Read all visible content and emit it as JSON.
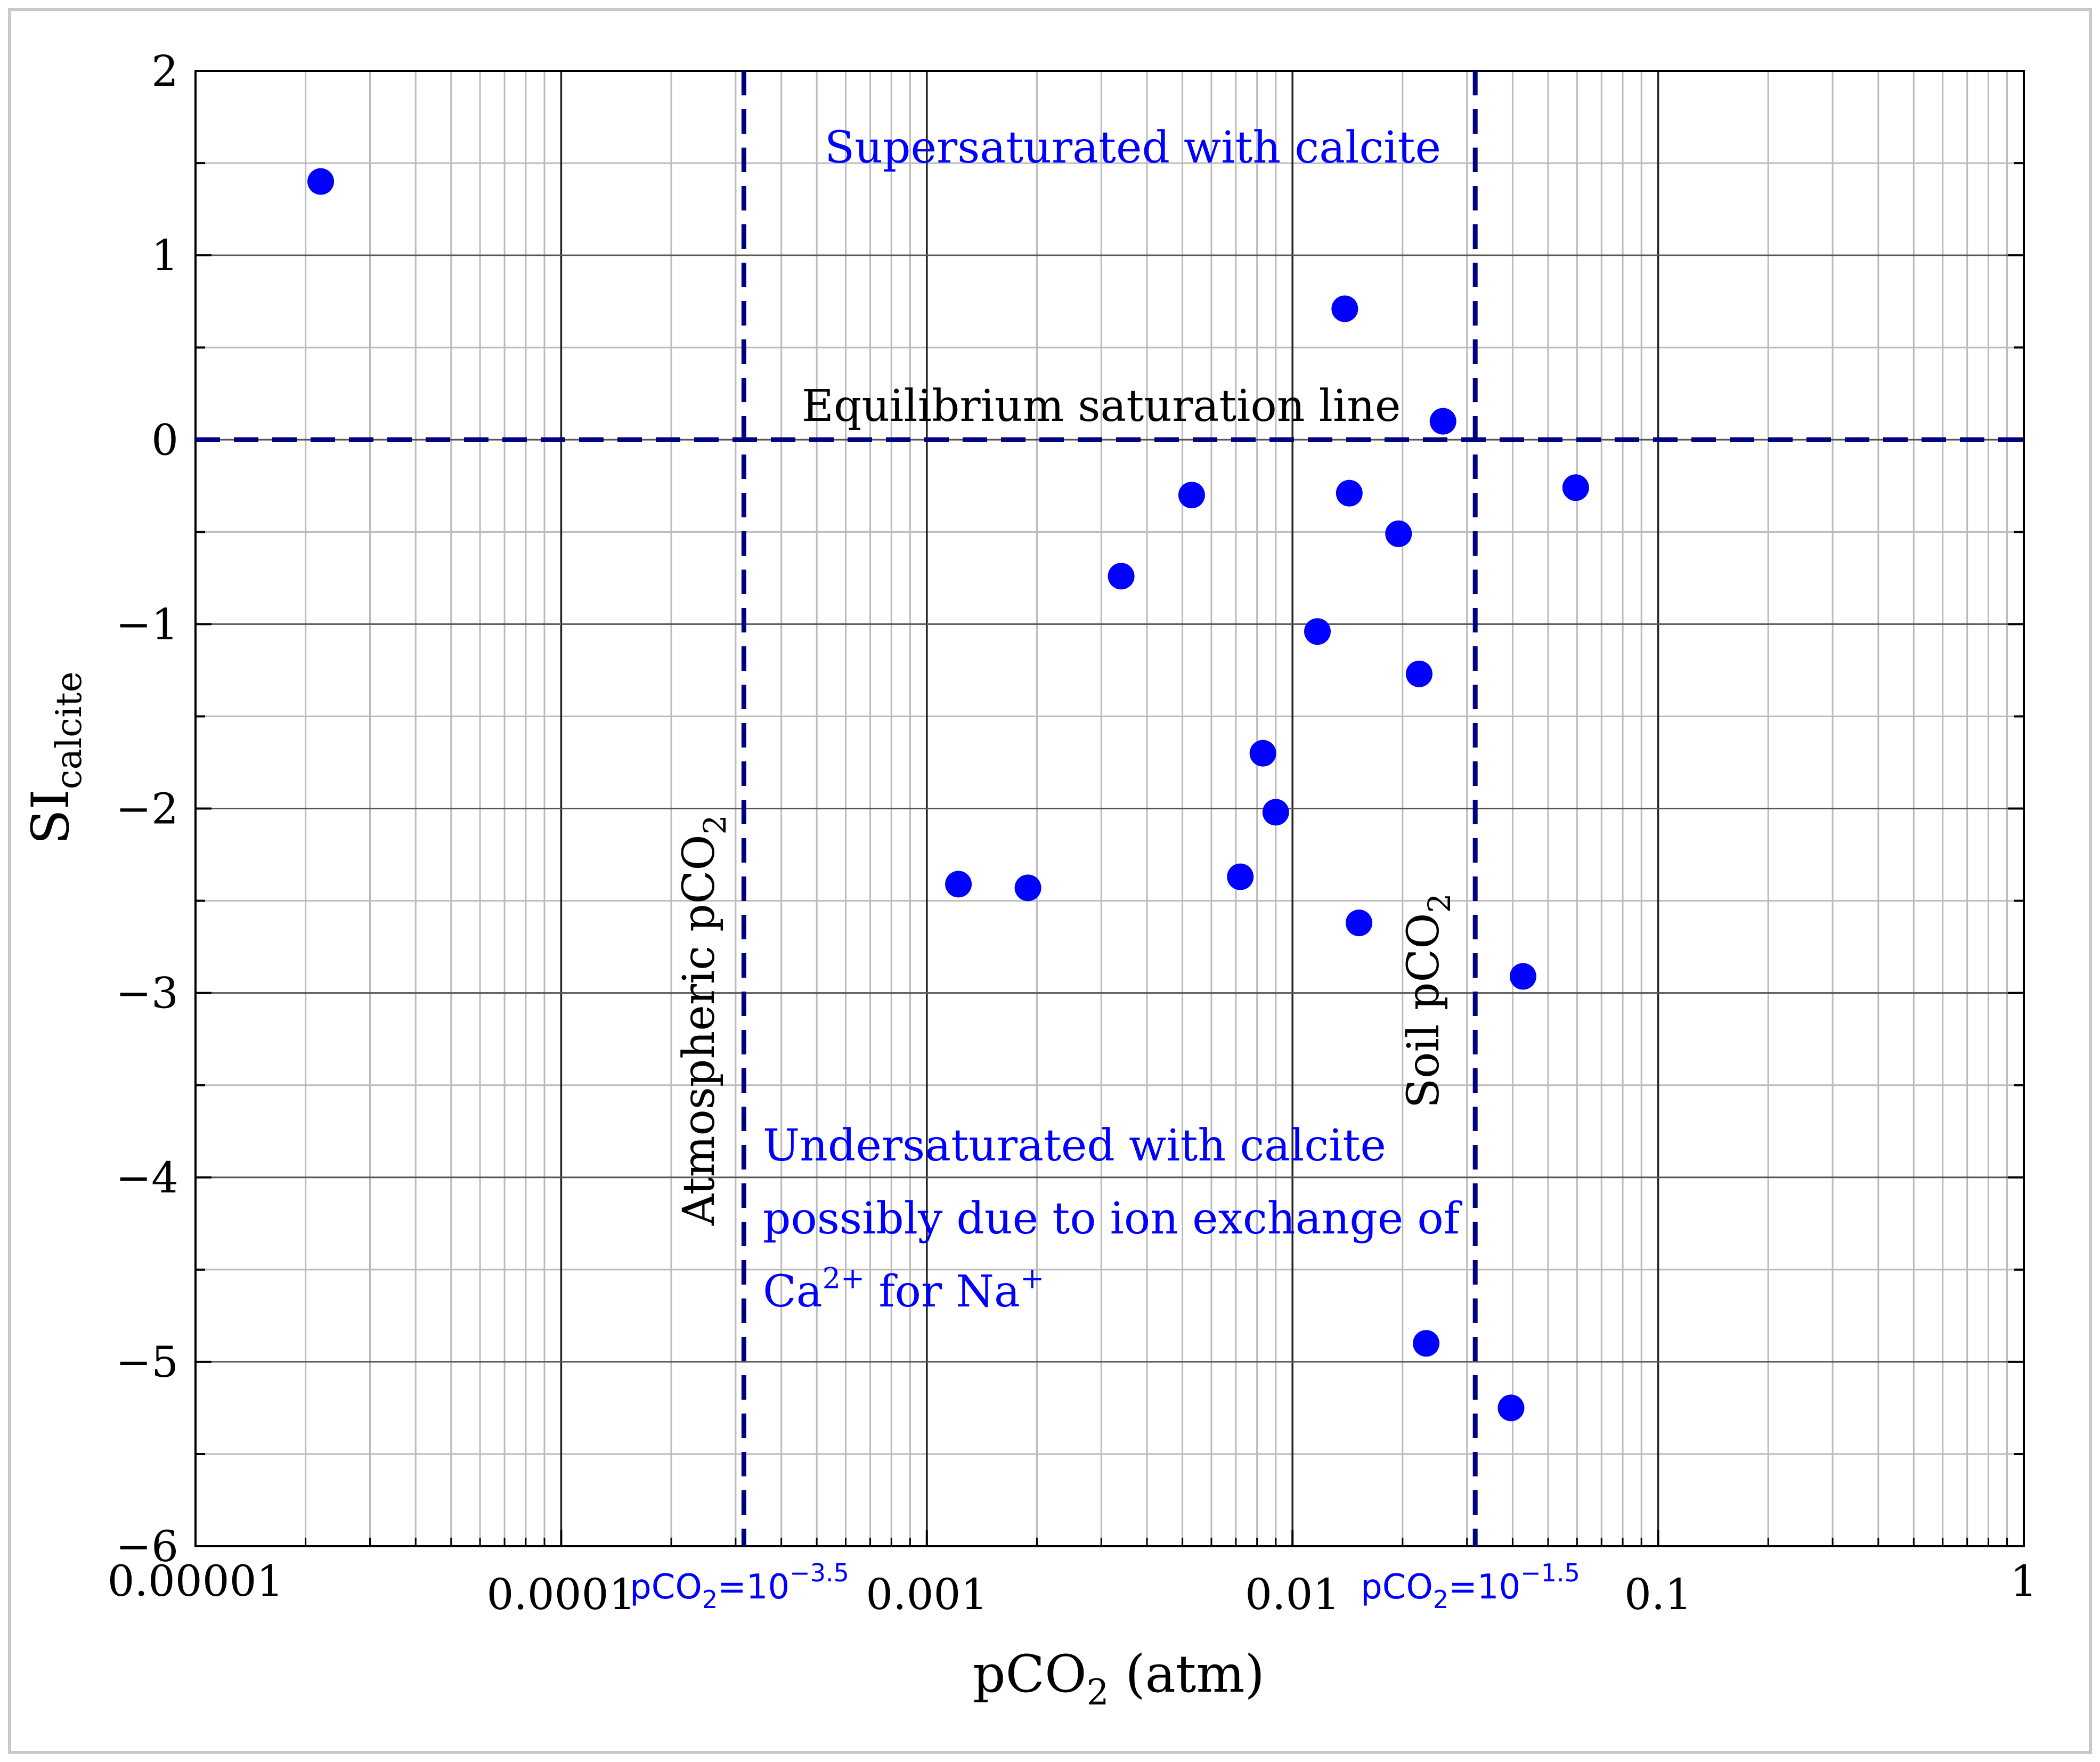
{
  "colors": {
    "marker": "#0000ff",
    "reference_line": "#000080",
    "blue_text": "#0000ff",
    "grid_major": "#222222",
    "grid_minor": "#bbbbbb",
    "frame": "#c8c8c8"
  },
  "chart_data": {
    "type": "scatter",
    "x_scale": "log",
    "xlim": [
      1e-05,
      1
    ],
    "ylim": [
      -6,
      2
    ],
    "x_tick_labels": [
      "0.00001",
      "0.0001",
      "0.001",
      "0.01",
      "0.1",
      "1"
    ],
    "x_ticks": [
      1e-05,
      0.0001,
      0.001,
      0.01,
      0.1,
      1
    ],
    "y_ticks": [
      2,
      1,
      0,
      -1,
      -2,
      -3,
      -4,
      -5,
      -6
    ],
    "y_tick_labels": [
      "2",
      "1",
      "0",
      "−1",
      "−2",
      "−3",
      "−4",
      "−5",
      "−6"
    ],
    "grid": true,
    "xlabel": {
      "base": "pCO",
      "sub": "2",
      "rest": " (atm)"
    },
    "ylabel": {
      "base": "SI",
      "sub": "calcite"
    },
    "points": [
      {
        "x": 2.2e-05,
        "y": 1.4
      },
      {
        "x": 0.0139,
        "y": 0.71
      },
      {
        "x": 0.0258,
        "y": 0.1
      },
      {
        "x": 0.0053,
        "y": -0.3
      },
      {
        "x": 0.0143,
        "y": -0.29
      },
      {
        "x": 0.0595,
        "y": -0.26
      },
      {
        "x": 0.0195,
        "y": -0.51
      },
      {
        "x": 0.0034,
        "y": -0.74
      },
      {
        "x": 0.0117,
        "y": -1.04
      },
      {
        "x": 0.0222,
        "y": -1.27
      },
      {
        "x": 0.0083,
        "y": -1.7
      },
      {
        "x": 0.009,
        "y": -2.02
      },
      {
        "x": 0.00122,
        "y": -2.41
      },
      {
        "x": 0.00189,
        "y": -2.43
      },
      {
        "x": 0.0072,
        "y": -2.37
      },
      {
        "x": 0.0152,
        "y": -2.62
      },
      {
        "x": 0.0427,
        "y": -2.91
      },
      {
        "x": 0.0232,
        "y": -4.9
      },
      {
        "x": 0.0396,
        "y": -5.25
      }
    ],
    "reference_lines": [
      {
        "orientation": "horizontal",
        "y": 0,
        "label": "Equilibrium saturation line"
      },
      {
        "orientation": "vertical",
        "x": 0.000316,
        "label": {
          "text": "Atmospheric pCO",
          "sub": "2"
        },
        "tick_label": {
          "base": "pCO",
          "sub": "2",
          "eq": "=10",
          "sup": "−3.5"
        }
      },
      {
        "orientation": "vertical",
        "x": 0.0316,
        "label": {
          "text": "Soil pCO",
          "sub": "2"
        },
        "tick_label": {
          "base": "pCO",
          "sub": "2",
          "eq": "=10",
          "sup": "−1.5"
        }
      }
    ],
    "annotations": {
      "supersaturated": "Supersaturated with calcite",
      "undersaturated": {
        "line1": "Undersaturated with calcite",
        "line2": "possibly due to ion exchange of",
        "line3_ca": "Ca",
        "line3_ca_sup": "2+",
        "line3_mid": " for Na",
        "line3_na_sup": "+"
      }
    }
  }
}
